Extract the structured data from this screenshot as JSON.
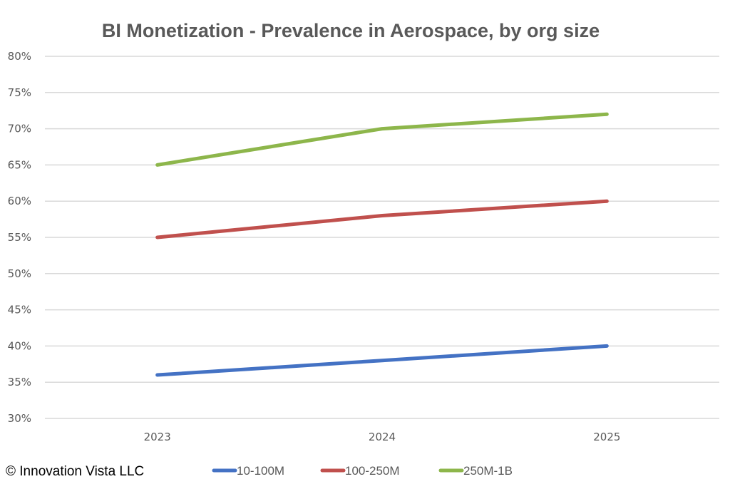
{
  "chart_data": {
    "type": "line",
    "title": "BI Monetization - Prevalence in Aerospace, by org size",
    "xlabel": "",
    "ylabel": "",
    "categories": [
      "2023",
      "2024",
      "2025"
    ],
    "ylim": [
      0.3,
      0.8
    ],
    "yticks": [
      0.3,
      0.35,
      0.4,
      0.45,
      0.5,
      0.55,
      0.6,
      0.65,
      0.7,
      0.75,
      0.8
    ],
    "ytick_labels": [
      "30%",
      "35%",
      "40%",
      "45%",
      "50%",
      "55%",
      "60%",
      "65%",
      "70%",
      "75%",
      "80%"
    ],
    "grid": true,
    "legend_position": "bottom",
    "series": [
      {
        "name": "10-100M",
        "color": "#4472c4",
        "values": [
          0.36,
          0.38,
          0.4
        ]
      },
      {
        "name": "100-250M",
        "color": "#c0504d",
        "values": [
          0.55,
          0.58,
          0.6
        ]
      },
      {
        "name": "250M-1B",
        "color": "#8db64b",
        "values": [
          0.65,
          0.7,
          0.72
        ]
      }
    ]
  },
  "footer": {
    "copyright": "© Innovation Vista LLC"
  }
}
